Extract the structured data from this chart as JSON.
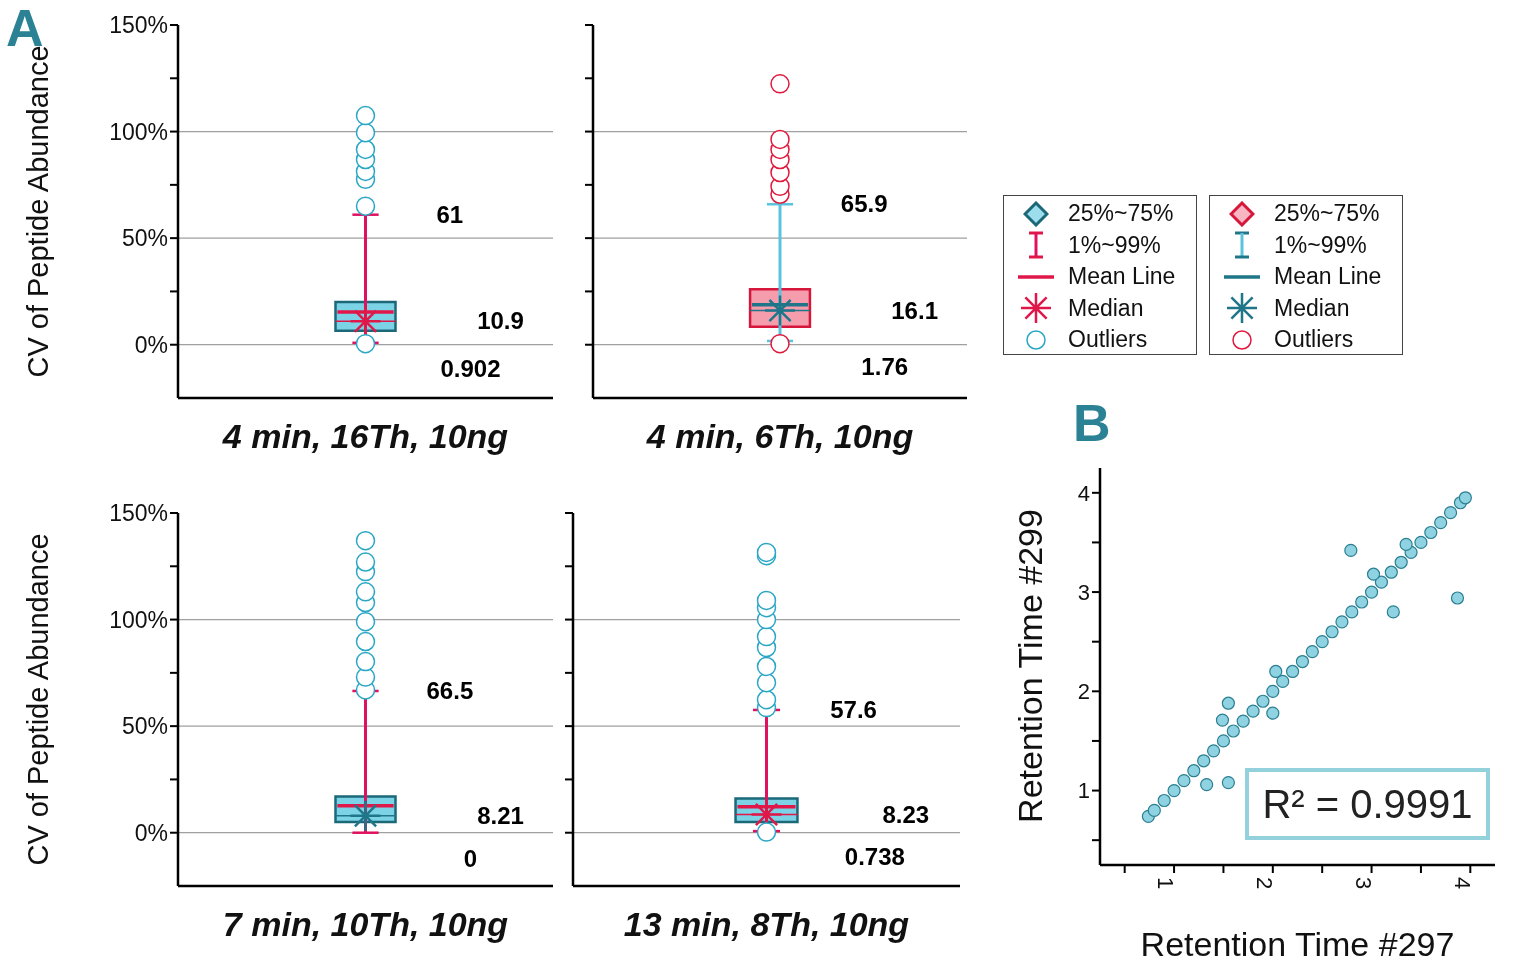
{
  "chart_data": [
    {
      "type": "box",
      "title": "A",
      "categories": [
        "4 min, 16Th, 10ng"
      ],
      "ylabel": "CV of Peptide Abundance",
      "ylim": [
        -25,
        150
      ],
      "yticks": [
        {
          "value": 0,
          "label": "0%"
        },
        {
          "value": 25,
          "label": null
        },
        {
          "value": 50,
          "label": "50%"
        },
        {
          "value": 75,
          "label": null
        },
        {
          "value": 100,
          "label": "100%"
        },
        {
          "value": 125,
          "label": null
        },
        {
          "value": 150,
          "label": "150%"
        }
      ],
      "grid": "y",
      "series": [
        {
          "color": "#5bc8e0",
          "boxes": [
            {
              "low": 0.902,
              "q1": 6.5,
              "median": 11,
              "q3": 20,
              "high": 61,
              "mean": 15.4,
              "outliers": [
                0.5,
                65,
                77.6,
                81.3,
                86.9,
                91.6,
                99.5,
                107.5
              ]
            }
          ]
        }
      ],
      "annotations": [
        "61",
        "10.9",
        "0.902"
      ]
    },
    {
      "type": "box",
      "categories": [
        "4 min, 6Th, 10ng"
      ],
      "ylim": [
        -25,
        150
      ],
      "yticks": [
        {
          "value": 0,
          "label": null
        },
        {
          "value": 25,
          "label": null
        },
        {
          "value": 50,
          "label": null
        },
        {
          "value": 75,
          "label": null
        },
        {
          "value": 100,
          "label": null
        },
        {
          "value": 125,
          "label": null
        },
        {
          "value": 150,
          "label": null
        }
      ],
      "grid": "y",
      "tick_labels": "x",
      "series": [
        {
          "color": "#f28598",
          "boxes": [
            {
              "low": 1.76,
              "q1": 8.4,
              "median": 16,
              "q3": 26,
              "high": 65.9,
              "mean": 18.7,
              "outliers": [
                0.5,
                70.6,
                74.3,
                80.8,
                86.9,
                91.6,
                96.3,
                122.4
              ]
            }
          ]
        }
      ],
      "annotations": [
        "65.9",
        "16.1",
        "1.76"
      ]
    },
    {
      "type": "other",
      "annotations": [
        "25%~75%",
        "1%~99%",
        "Mean Line",
        "Median",
        "Outliers",
        "25%~75%",
        "1%~99%",
        "Mean Line",
        "Median",
        "Outliers"
      ]
    },
    {
      "type": "box",
      "categories": [
        "7 min, 10Th, 10ng"
      ],
      "ylabel": "CV of Peptide Abundance",
      "ylim": [
        -25,
        150
      ],
      "yticks": [
        {
          "value": 0,
          "label": "0%"
        },
        {
          "value": 25,
          "label": null
        },
        {
          "value": 50,
          "label": "50%"
        },
        {
          "value": 75,
          "label": null
        },
        {
          "value": 100,
          "label": "100%"
        },
        {
          "value": 125,
          "label": null
        },
        {
          "value": 150,
          "label": "150%"
        }
      ],
      "grid": "y",
      "series": [
        {
          "color": "#5bc8e0",
          "boxes": [
            {
              "low": 0,
              "q1": 5,
              "median": 8,
              "q3": 17,
              "high": 66.5,
              "mean": 12.7,
              "outliers": [
                67,
                73,
                80.3,
                89.7,
                99,
                108,
                113,
                122.5,
                127,
                137
              ]
            }
          ]
        }
      ],
      "annotations": [
        "66.5",
        "8.21",
        "0"
      ]
    },
    {
      "type": "box",
      "categories": [
        "13 min, 8Th, 10ng"
      ],
      "ylim": [
        -25,
        150
      ],
      "yticks": [
        {
          "value": 0,
          "label": null
        },
        {
          "value": 25,
          "label": null
        },
        {
          "value": 50,
          "label": null
        },
        {
          "value": 75,
          "label": null
        },
        {
          "value": 100,
          "label": null
        },
        {
          "value": 125,
          "label": null
        },
        {
          "value": 150,
          "label": null
        }
      ],
      "grid": "y",
      "tick_labels": "x",
      "series": [
        {
          "color": "#5bc8e0",
          "boxes": [
            {
              "low": 0.738,
              "q1": 5,
              "median": 8.5,
              "q3": 16,
              "high": 57.6,
              "mean": 12.2,
              "outliers": [
                0.3,
                58.7,
                62.4,
                70.4,
                78,
                86.9,
                92,
                100,
                105.6,
                109,
                130,
                131.5
              ]
            }
          ]
        }
      ],
      "annotations": [
        "57.6",
        "8.23",
        "0.738"
      ]
    },
    {
      "type": "scatter",
      "title": "B",
      "xlabel": "Retention Time #297",
      "ylabel": "Retention Time #299",
      "xlim": [
        0.25,
        4.25
      ],
      "ylim": [
        0.25,
        4.25
      ],
      "xticks": [
        {
          "value": 0.5,
          "label": null
        },
        1,
        {
          "value": 1.5,
          "label": null
        },
        2,
        {
          "value": 2.5,
          "label": null
        },
        3,
        {
          "value": 3.5,
          "label": null
        },
        4
      ],
      "yticks": [
        {
          "value": 0.5,
          "label": null
        },
        1,
        {
          "value": 1.5,
          "label": null
        },
        2,
        {
          "value": 2.5,
          "label": null
        },
        3,
        {
          "value": 3.5,
          "label": null
        },
        4
      ],
      "grid": false,
      "marker": "circle",
      "annotations": [
        "R² = 0.9991"
      ],
      "series": [
        {
          "color": "#8fd3e3",
          "x": [
            0.74,
            0.8,
            0.9,
            1.0,
            1.1,
            1.2,
            1.3,
            1.4,
            1.5,
            1.6,
            1.7,
            1.8,
            1.9,
            2.0,
            2.1,
            2.2,
            2.3,
            2.4,
            2.5,
            2.6,
            2.7,
            2.8,
            2.9,
            3.0,
            3.1,
            3.2,
            3.3,
            3.4,
            3.5,
            3.6,
            3.7,
            3.8,
            3.9,
            3.95,
            1.33,
            1.55,
            1.49,
            1.55,
            2.0,
            2.03,
            2.79,
            3.22,
            3.87,
            3.02,
            3.35
          ],
          "values": [
            0.74,
            0.8,
            0.9,
            1.0,
            1.1,
            1.2,
            1.3,
            1.4,
            1.5,
            1.6,
            1.7,
            1.8,
            1.9,
            2.0,
            2.1,
            2.2,
            2.3,
            2.4,
            2.5,
            2.6,
            2.7,
            2.8,
            2.9,
            3.0,
            3.1,
            3.2,
            3.3,
            3.4,
            3.5,
            3.6,
            3.7,
            3.8,
            3.9,
            3.95,
            1.06,
            1.08,
            1.71,
            1.88,
            1.78,
            2.2,
            3.42,
            2.8,
            2.94,
            3.18,
            3.48
          ]
        }
      ]
    }
  ]
}
